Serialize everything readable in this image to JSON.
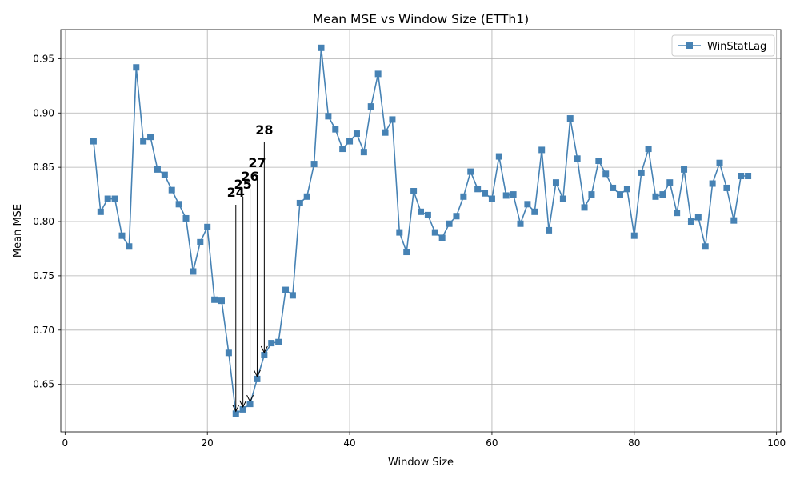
{
  "chart_data": {
    "type": "line",
    "title": "Mean MSE vs Window Size (ETTh1)",
    "xlabel": "Window Size",
    "ylabel": "Mean MSE",
    "xlim": [
      -0.6,
      100.6
    ],
    "ylim": [
      0.6063,
      0.9768
    ],
    "xticks": [
      0,
      20,
      40,
      60,
      80,
      100
    ],
    "yticks": [
      0.65,
      0.7,
      0.75,
      0.8,
      0.85,
      0.9,
      0.95
    ],
    "grid": true,
    "legend_position": "top-right",
    "series": [
      {
        "name": "WinStatLag",
        "color": "#4682b4",
        "marker": "square",
        "x": [
          4,
          5,
          6,
          7,
          8,
          9,
          10,
          11,
          12,
          13,
          14,
          15,
          16,
          17,
          18,
          19,
          20,
          21,
          22,
          23,
          24,
          25,
          26,
          27,
          28,
          29,
          30,
          31,
          32,
          33,
          34,
          35,
          36,
          37,
          38,
          39,
          40,
          41,
          42,
          43,
          44,
          45,
          46,
          47,
          48,
          49,
          50,
          51,
          52,
          53,
          54,
          55,
          56,
          57,
          58,
          59,
          60,
          61,
          62,
          63,
          64,
          65,
          66,
          67,
          68,
          69,
          70,
          71,
          72,
          73,
          74,
          75,
          76,
          77,
          78,
          79,
          80,
          81,
          82,
          83,
          84,
          85,
          86,
          87,
          88,
          89,
          90,
          91,
          92,
          93,
          94,
          95,
          96
        ],
        "y": [
          0.874,
          0.809,
          0.821,
          0.821,
          0.787,
          0.777,
          0.942,
          0.874,
          0.878,
          0.848,
          0.843,
          0.829,
          0.816,
          0.803,
          0.754,
          0.781,
          0.795,
          0.728,
          0.727,
          0.679,
          0.623,
          0.627,
          0.632,
          0.655,
          0.677,
          0.688,
          0.689,
          0.737,
          0.732,
          0.817,
          0.823,
          0.853,
          0.96,
          0.897,
          0.885,
          0.867,
          0.874,
          0.881,
          0.864,
          0.906,
          0.936,
          0.882,
          0.894,
          0.79,
          0.772,
          0.828,
          0.809,
          0.806,
          0.79,
          0.785,
          0.798,
          0.805,
          0.823,
          0.846,
          0.83,
          0.826,
          0.821,
          0.86,
          0.824,
          0.825,
          0.798,
          0.816,
          0.809,
          0.866,
          0.792,
          0.836,
          0.821,
          0.895,
          0.858,
          0.813,
          0.825,
          0.856,
          0.844,
          0.831,
          0.825,
          0.83,
          0.787,
          0.845,
          0.867,
          0.823,
          0.825,
          0.836,
          0.808,
          0.848,
          0.8,
          0.804,
          0.777,
          0.835,
          0.854,
          0.831,
          0.801,
          0.842,
          0.842
        ]
      }
    ],
    "annotations": [
      {
        "text": "24",
        "x": 24,
        "y": 0.623
      },
      {
        "text": "25",
        "x": 25,
        "y": 0.627
      },
      {
        "text": "26",
        "x": 26,
        "y": 0.632
      },
      {
        "text": "27",
        "x": 27,
        "y": 0.655
      },
      {
        "text": "28",
        "x": 28,
        "y": 0.677
      }
    ]
  }
}
